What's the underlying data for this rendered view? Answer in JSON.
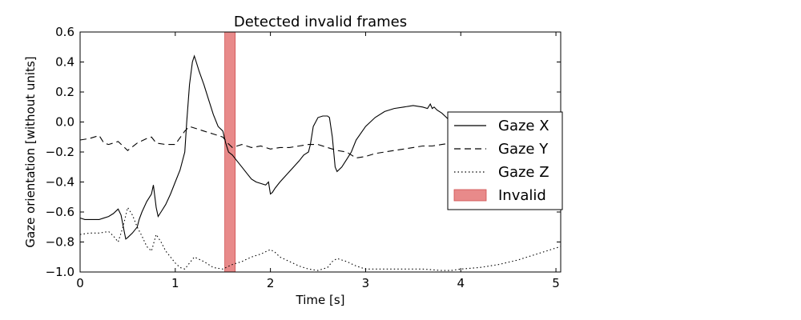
{
  "chart_data": {
    "type": "line",
    "title": "Detected invalid frames",
    "xlabel": "Time [s]",
    "ylabel": "Gaze orientation [without units]",
    "xlim": [
      0,
      5.05
    ],
    "ylim": [
      -1.0,
      0.6
    ],
    "xticks": [
      0,
      1,
      2,
      3,
      4,
      5
    ],
    "xtick_labels": [
      "0",
      "1",
      "2",
      "3",
      "4",
      "5"
    ],
    "yticks": [
      -1.0,
      -0.8,
      -0.6,
      -0.4,
      -0.2,
      0.0,
      0.2,
      0.4,
      0.6
    ],
    "ytick_labels": [
      "−1.0",
      "−0.8",
      "−0.6",
      "−0.4",
      "−0.2",
      "0.0",
      "0.2",
      "0.4",
      "0.6"
    ],
    "grid": false,
    "legend_position": "center-right",
    "invalid_interval": {
      "name": "Invalid",
      "x_start": 1.52,
      "x_end": 1.63,
      "color": "#e88a8a"
    },
    "series": [
      {
        "name": "Gaze X",
        "dash": "solid",
        "x": [
          0,
          0.05,
          0.1,
          0.2,
          0.3,
          0.35,
          0.4,
          0.43,
          0.46,
          0.48,
          0.5,
          0.55,
          0.6,
          0.62,
          0.65,
          0.7,
          0.75,
          0.77,
          0.8,
          0.82,
          0.85,
          0.9,
          0.95,
          1.0,
          1.05,
          1.1,
          1.12,
          1.15,
          1.18,
          1.2,
          1.22,
          1.25,
          1.3,
          1.35,
          1.4,
          1.45,
          1.5,
          1.53,
          1.56,
          1.6,
          1.65,
          1.7,
          1.75,
          1.8,
          1.85,
          1.9,
          1.95,
          1.98,
          2.0,
          2.02,
          2.05,
          2.1,
          2.2,
          2.3,
          2.35,
          2.4,
          2.42,
          2.45,
          2.5,
          2.55,
          2.6,
          2.62,
          2.65,
          2.68,
          2.7,
          2.75,
          2.8,
          2.85,
          2.9,
          3.0,
          3.1,
          3.2,
          3.3,
          3.4,
          3.5,
          3.6,
          3.65,
          3.68,
          3.7,
          3.72,
          3.75,
          3.8,
          3.85,
          3.9
        ],
        "y": [
          -0.64,
          -0.65,
          -0.65,
          -0.65,
          -0.63,
          -0.61,
          -0.58,
          -0.62,
          -0.72,
          -0.78,
          -0.77,
          -0.74,
          -0.7,
          -0.65,
          -0.6,
          -0.53,
          -0.48,
          -0.42,
          -0.57,
          -0.63,
          -0.6,
          -0.55,
          -0.48,
          -0.4,
          -0.32,
          -0.2,
          0.0,
          0.25,
          0.4,
          0.44,
          0.4,
          0.34,
          0.25,
          0.15,
          0.05,
          -0.03,
          -0.06,
          -0.14,
          -0.2,
          -0.22,
          -0.26,
          -0.3,
          -0.34,
          -0.38,
          -0.4,
          -0.41,
          -0.42,
          -0.4,
          -0.48,
          -0.47,
          -0.44,
          -0.4,
          -0.33,
          -0.26,
          -0.22,
          -0.2,
          -0.15,
          -0.03,
          0.03,
          0.04,
          0.04,
          0.03,
          -0.1,
          -0.3,
          -0.33,
          -0.3,
          -0.25,
          -0.2,
          -0.12,
          -0.03,
          0.03,
          0.07,
          0.09,
          0.1,
          0.11,
          0.1,
          0.09,
          0.12,
          0.09,
          0.1,
          0.08,
          0.06,
          0.03,
          0.0
        ]
      },
      {
        "name": "Gaze Y",
        "dash": "dashed",
        "x": [
          0,
          0.1,
          0.2,
          0.25,
          0.3,
          0.4,
          0.5,
          0.6,
          0.7,
          0.75,
          0.8,
          0.9,
          1.0,
          1.1,
          1.15,
          1.2,
          1.3,
          1.4,
          1.5,
          1.55,
          1.6,
          1.7,
          1.8,
          1.9,
          2.0,
          2.1,
          2.2,
          2.3,
          2.4,
          2.5,
          2.6,
          2.7,
          2.8,
          2.9,
          3.0,
          3.1,
          3.2,
          3.3,
          3.4,
          3.5,
          3.6,
          3.7,
          3.8,
          3.9,
          4.0
        ],
        "y": [
          -0.12,
          -0.11,
          -0.09,
          -0.14,
          -0.15,
          -0.13,
          -0.19,
          -0.14,
          -0.11,
          -0.1,
          -0.14,
          -0.15,
          -0.15,
          -0.06,
          -0.03,
          -0.04,
          -0.06,
          -0.08,
          -0.1,
          -0.14,
          -0.17,
          -0.15,
          -0.17,
          -0.16,
          -0.18,
          -0.17,
          -0.17,
          -0.16,
          -0.15,
          -0.15,
          -0.17,
          -0.19,
          -0.2,
          -0.24,
          -0.23,
          -0.21,
          -0.2,
          -0.19,
          -0.18,
          -0.17,
          -0.16,
          -0.16,
          -0.15,
          -0.14,
          -0.13
        ]
      },
      {
        "name": "Gaze Z",
        "dash": "dotted",
        "x": [
          0,
          0.1,
          0.2,
          0.3,
          0.35,
          0.4,
          0.45,
          0.5,
          0.55,
          0.6,
          0.65,
          0.7,
          0.75,
          0.8,
          0.85,
          0.9,
          0.95,
          1.0,
          1.05,
          1.1,
          1.15,
          1.2,
          1.3,
          1.4,
          1.5,
          1.6,
          1.7,
          1.8,
          1.9,
          2.0,
          2.05,
          2.1,
          2.2,
          2.3,
          2.4,
          2.5,
          2.6,
          2.65,
          2.7,
          2.8,
          2.9,
          3.0,
          3.2,
          3.4,
          3.6,
          3.8,
          3.9,
          4.0,
          4.2,
          4.4,
          4.6,
          4.8,
          5.0,
          5.05
        ],
        "y": [
          -0.75,
          -0.74,
          -0.74,
          -0.73,
          -0.76,
          -0.8,
          -0.7,
          -0.57,
          -0.62,
          -0.7,
          -0.76,
          -0.83,
          -0.86,
          -0.75,
          -0.8,
          -0.86,
          -0.9,
          -0.94,
          -0.97,
          -0.98,
          -0.94,
          -0.9,
          -0.93,
          -0.97,
          -0.98,
          -0.95,
          -0.93,
          -0.9,
          -0.88,
          -0.85,
          -0.87,
          -0.9,
          -0.93,
          -0.96,
          -0.98,
          -0.99,
          -0.97,
          -0.93,
          -0.91,
          -0.93,
          -0.96,
          -0.98,
          -0.98,
          -0.98,
          -0.98,
          -0.99,
          -0.99,
          -0.98,
          -0.97,
          -0.95,
          -0.92,
          -0.88,
          -0.84,
          -0.83
        ]
      }
    ],
    "legend": [
      {
        "label": "Gaze X",
        "style": "solid"
      },
      {
        "label": "Gaze Y",
        "style": "dashed"
      },
      {
        "label": "Gaze Z",
        "style": "dotted"
      },
      {
        "label": "Invalid",
        "style": "patch"
      }
    ]
  }
}
